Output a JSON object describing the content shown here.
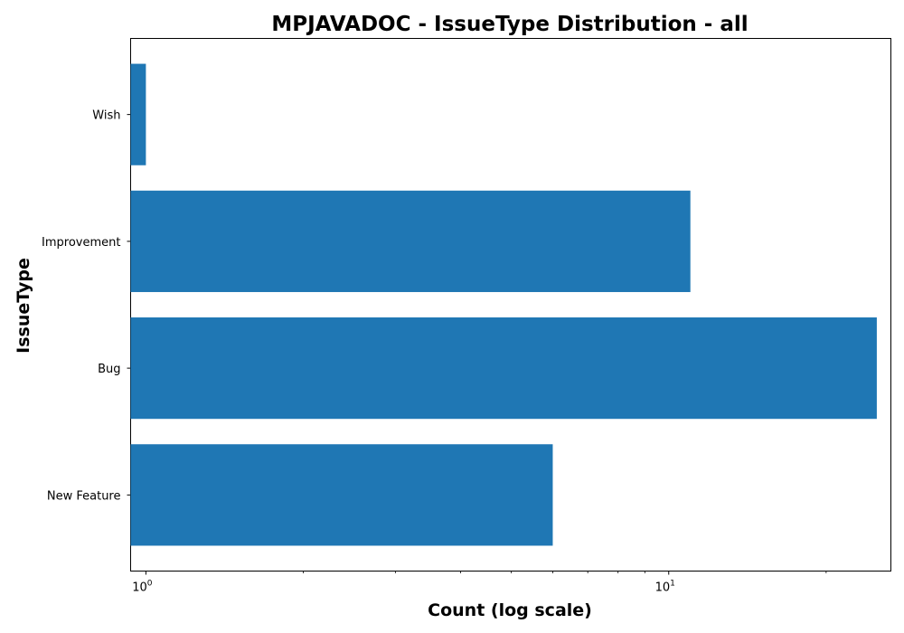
{
  "chart_data": {
    "type": "bar",
    "orientation": "horizontal",
    "title": "MPJAVADOC - IssueType Distribution - all",
    "xlabel": "Count (log scale)",
    "ylabel": "IssueType",
    "x_scale": "log",
    "xlim": [
      0.935,
      26.6
    ],
    "x_ticks": [
      {
        "value": 1,
        "base": "10",
        "exp": "0"
      },
      {
        "value": 10,
        "base": "10",
        "exp": "1"
      }
    ],
    "x_minor_ticks": [
      2,
      3,
      4,
      5,
      6,
      7,
      8,
      9,
      20
    ],
    "categories": [
      "Wish",
      "Improvement",
      "Bug",
      "New Feature"
    ],
    "values": [
      1,
      11,
      25,
      6
    ],
    "bar_color": "#1f77b4",
    "grid": false,
    "legend": "none"
  }
}
